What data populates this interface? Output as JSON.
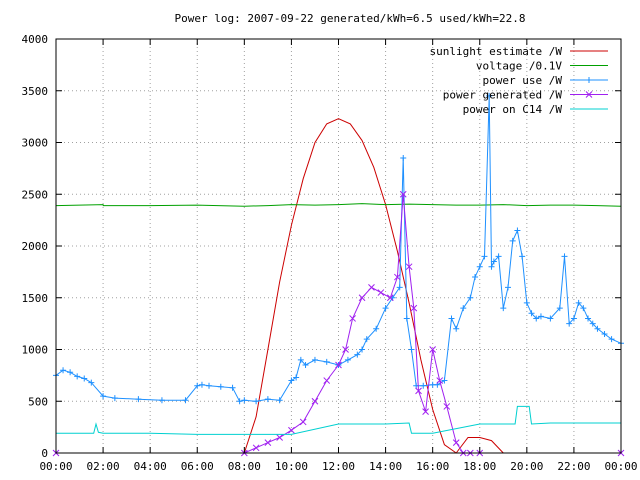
{
  "chart_data": {
    "type": "line",
    "title": "Power log: 2007-09-22 generated/kWh=6.5 used/kWh=22.8",
    "xlabel": "",
    "ylabel": "",
    "xlim": [
      0,
      24
    ],
    "ylim": [
      0,
      4000
    ],
    "grid": true,
    "legend_position": "top-right",
    "x_ticks": [
      "00:00",
      "02:00",
      "04:00",
      "06:00",
      "08:00",
      "10:00",
      "12:00",
      "14:00",
      "16:00",
      "18:00",
      "20:00",
      "22:00",
      "00:00"
    ],
    "y_ticks": [
      "0",
      "500",
      "1000",
      "1500",
      "2000",
      "2500",
      "3000",
      "3500",
      "4000"
    ],
    "colors": {
      "sunlight": "#cc0000",
      "voltage": "#00a000",
      "power_use": "#1e90ff",
      "power_generated": "#a020f0",
      "power_c14": "#00d0d0"
    },
    "series": [
      {
        "name": "sunlight estimate /W",
        "x": [
          8.0,
          8.5,
          9.0,
          9.5,
          10.0,
          10.5,
          11.0,
          11.5,
          12.0,
          12.5,
          13.0,
          13.5,
          14.0,
          14.5,
          15.0,
          15.5,
          16.0,
          16.5,
          17.0,
          17.5,
          18.0,
          18.5,
          19.0
        ],
        "values": [
          0,
          350,
          1000,
          1650,
          2200,
          2650,
          3000,
          3180,
          3230,
          3180,
          3020,
          2760,
          2400,
          1950,
          1450,
          900,
          420,
          80,
          0,
          150,
          150,
          120,
          0
        ]
      },
      {
        "name": "voltage /0.1V",
        "x": [
          0,
          1.0,
          2.0,
          2.01,
          4.0,
          6.0,
          8.0,
          9.0,
          10.0,
          11.0,
          12.0,
          13.0,
          14.0,
          15.0,
          16.0,
          17.0,
          18.0,
          19.0,
          20.0,
          21.0,
          22.0,
          23.0,
          24.0
        ],
        "values": [
          2390,
          2395,
          2400,
          2390,
          2390,
          2395,
          2385,
          2390,
          2400,
          2395,
          2400,
          2410,
          2400,
          2405,
          2400,
          2395,
          2395,
          2400,
          2390,
          2395,
          2395,
          2390,
          2385
        ]
      },
      {
        "name": "power use /W",
        "x": [
          0,
          0.3,
          0.6,
          0.9,
          1.2,
          1.5,
          2.0,
          2.5,
          3.5,
          4.5,
          5.5,
          6.0,
          6.2,
          6.5,
          7.0,
          7.5,
          7.8,
          8.0,
          8.5,
          9.0,
          9.5,
          10.0,
          10.2,
          10.4,
          10.6,
          11.0,
          11.5,
          12.0,
          12.4,
          12.8,
          13.0,
          13.2,
          13.6,
          14.0,
          14.3,
          14.6,
          14.75,
          14.9,
          15.1,
          15.3,
          15.6,
          16.0,
          16.2,
          16.5,
          16.8,
          17.0,
          17.3,
          17.6,
          17.8,
          18.0,
          18.2,
          18.4,
          18.5,
          18.6,
          18.8,
          19.0,
          19.2,
          19.4,
          19.6,
          19.8,
          20.0,
          20.2,
          20.4,
          20.6,
          21.0,
          21.4,
          21.6,
          21.8,
          22.0,
          22.2,
          22.4,
          22.6,
          22.8,
          23.0,
          23.3,
          23.6,
          24.0
        ],
        "values": [
          750,
          800,
          780,
          740,
          720,
          680,
          550,
          530,
          520,
          510,
          510,
          650,
          660,
          650,
          640,
          630,
          500,
          510,
          500,
          520,
          510,
          700,
          730,
          900,
          850,
          900,
          880,
          850,
          900,
          950,
          1000,
          1100,
          1200,
          1400,
          1500,
          1600,
          2850,
          1300,
          1000,
          650,
          650,
          660,
          660,
          700,
          1300,
          1200,
          1400,
          1500,
          1700,
          1800,
          1900,
          3450,
          1800,
          1850,
          1900,
          1400,
          1600,
          2050,
          2150,
          1900,
          1450,
          1350,
          1300,
          1320,
          1300,
          1400,
          1900,
          1250,
          1300,
          1450,
          1400,
          1300,
          1250,
          1200,
          1150,
          1100,
          1060
        ]
      },
      {
        "name": "power generated /W",
        "x": [
          0,
          8.0,
          8.5,
          9.0,
          9.5,
          10.0,
          10.5,
          11.0,
          11.5,
          12.0,
          12.3,
          12.6,
          13.0,
          13.4,
          13.8,
          14.2,
          14.5,
          14.75,
          15.0,
          15.2,
          15.4,
          15.7,
          16.0,
          16.3,
          16.6,
          17.0,
          17.3,
          17.6,
          18.0,
          24.0
        ],
        "values": [
          0,
          0,
          50,
          100,
          150,
          220,
          300,
          500,
          700,
          850,
          1000,
          1300,
          1500,
          1600,
          1550,
          1500,
          1700,
          2500,
          1800,
          1400,
          600,
          400,
          1000,
          700,
          450,
          100,
          0,
          0,
          0,
          0
        ]
      },
      {
        "name": "power on C14 /W",
        "x": [
          0,
          1.6,
          1.7,
          1.8,
          2.0,
          4.0,
          6.0,
          8.0,
          10.0,
          12.0,
          14.0,
          15.0,
          15.1,
          16.0,
          18.0,
          19.5,
          19.6,
          20.1,
          20.2,
          21.0,
          22.0,
          24.0
        ],
        "values": [
          190,
          190,
          280,
          200,
          190,
          190,
          180,
          180,
          180,
          280,
          280,
          290,
          190,
          190,
          280,
          280,
          450,
          450,
          280,
          290,
          290,
          290
        ]
      }
    ]
  }
}
